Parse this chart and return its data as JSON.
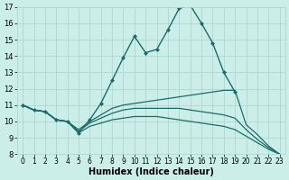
{
  "xlabel": "Humidex (Indice chaleur)",
  "bg_color": "#cceee8",
  "grid_color": "#b0d8d0",
  "line_color": "#1a6b6b",
  "xlim": [
    -0.5,
    23.5
  ],
  "ylim": [
    8,
    17
  ],
  "yticks": [
    8,
    9,
    10,
    11,
    12,
    13,
    14,
    15,
    16,
    17
  ],
  "xticks": [
    0,
    1,
    2,
    3,
    4,
    5,
    6,
    7,
    8,
    9,
    10,
    11,
    12,
    13,
    14,
    15,
    16,
    17,
    18,
    19,
    20,
    21,
    22,
    23
  ],
  "series": [
    {
      "x": [
        0,
        1,
        2,
        3,
        4,
        5,
        6,
        7,
        8,
        9,
        10,
        11,
        12,
        13,
        14,
        15,
        16,
        17,
        18,
        19
      ],
      "y": [
        11.0,
        10.7,
        10.6,
        10.1,
        10.0,
        9.3,
        10.1,
        11.1,
        12.5,
        13.9,
        15.2,
        14.2,
        14.4,
        15.6,
        16.9,
        17.1,
        16.0,
        14.8,
        13.0,
        11.8
      ],
      "marker": "D",
      "markersize": 2.0,
      "linewidth": 1.0
    },
    {
      "x": [
        0,
        1,
        2,
        3,
        4,
        5,
        6,
        7,
        8,
        9,
        10,
        11,
        12,
        13,
        14,
        15,
        16,
        17,
        18,
        19,
        20,
        21,
        22,
        23
      ],
      "y": [
        11.0,
        10.7,
        10.6,
        10.1,
        10.0,
        9.5,
        10.0,
        10.4,
        10.8,
        11.0,
        11.1,
        11.2,
        11.3,
        11.4,
        11.5,
        11.6,
        11.7,
        11.8,
        11.9,
        11.9,
        9.8,
        9.2,
        8.5,
        8.0
      ],
      "marker": null,
      "linewidth": 0.9
    },
    {
      "x": [
        0,
        1,
        2,
        3,
        4,
        5,
        6,
        7,
        8,
        9,
        10,
        11,
        12,
        13,
        14,
        15,
        16,
        17,
        18,
        19,
        20,
        21,
        22,
        23
      ],
      "y": [
        11.0,
        10.7,
        10.6,
        10.1,
        10.0,
        9.4,
        9.9,
        10.2,
        10.5,
        10.7,
        10.8,
        10.8,
        10.8,
        10.8,
        10.8,
        10.7,
        10.6,
        10.5,
        10.4,
        10.2,
        9.5,
        8.9,
        8.4,
        8.0
      ],
      "marker": null,
      "linewidth": 0.9
    },
    {
      "x": [
        0,
        1,
        2,
        3,
        4,
        5,
        6,
        7,
        8,
        9,
        10,
        11,
        12,
        13,
        14,
        15,
        16,
        17,
        18,
        19,
        20,
        21,
        22,
        23
      ],
      "y": [
        11.0,
        10.7,
        10.6,
        10.1,
        10.0,
        9.3,
        9.7,
        9.9,
        10.1,
        10.2,
        10.3,
        10.3,
        10.3,
        10.2,
        10.1,
        10.0,
        9.9,
        9.8,
        9.7,
        9.5,
        9.1,
        8.7,
        8.3,
        8.0
      ],
      "marker": null,
      "linewidth": 0.9
    }
  ]
}
